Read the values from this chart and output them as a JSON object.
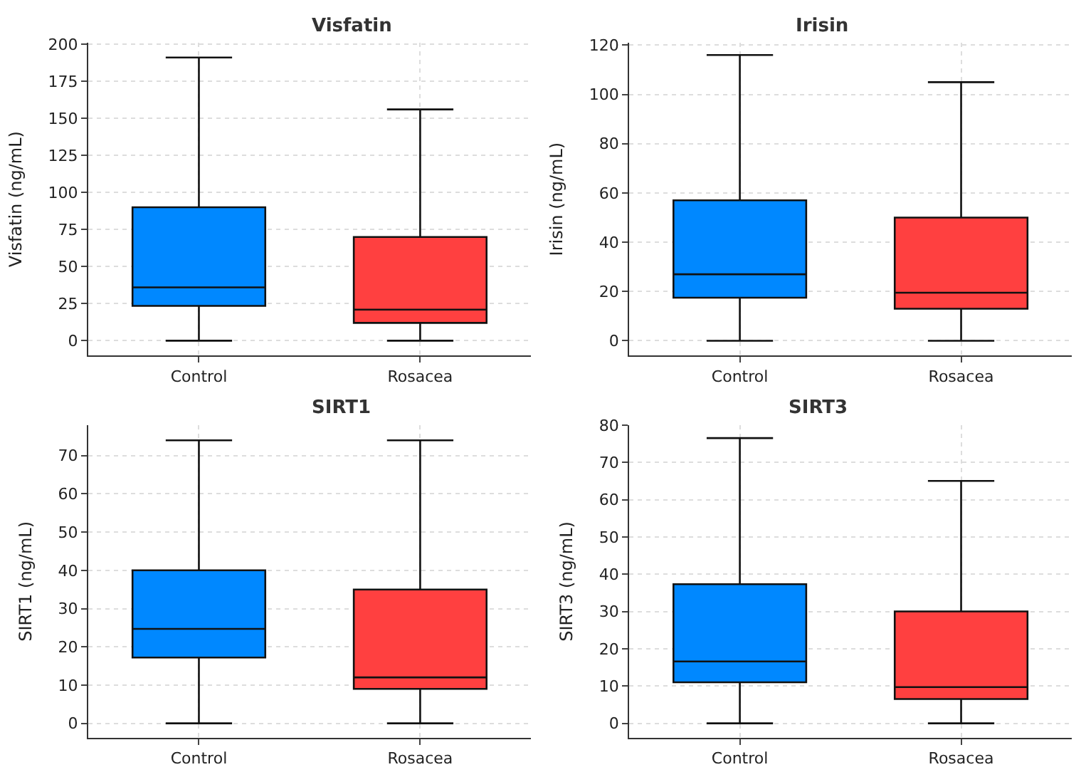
{
  "chart_data": [
    {
      "type": "box",
      "title": "Visfatin",
      "ylabel": "Visfatin (ng/mL)",
      "categories": [
        "Control",
        "Rosacea"
      ],
      "colors": [
        "#0088ff",
        "#ff4040"
      ],
      "boxes": [
        {
          "low": 0,
          "q1": 23.5,
          "median": 36,
          "q3": 90,
          "high": 191
        },
        {
          "low": 0,
          "q1": 12,
          "median": 21,
          "q3": 70,
          "high": 156
        }
      ],
      "ylim": [
        -10,
        201
      ],
      "yticks": [
        0,
        25,
        50,
        75,
        100,
        125,
        150,
        175,
        200
      ],
      "grid": true
    },
    {
      "type": "box",
      "title": "Irisin",
      "ylabel": "Irisin (ng/mL)",
      "categories": [
        "Control",
        "Rosacea"
      ],
      "colors": [
        "#0088ff",
        "#ff4040"
      ],
      "boxes": [
        {
          "low": 0,
          "q1": 17.5,
          "median": 27,
          "q3": 57,
          "high": 116
        },
        {
          "low": 0,
          "q1": 13,
          "median": 19.5,
          "q3": 50,
          "high": 105
        }
      ],
      "ylim": [
        -6,
        121
      ],
      "yticks": [
        0,
        20,
        40,
        60,
        80,
        100,
        120
      ],
      "grid": true
    },
    {
      "type": "box",
      "title": "SIRT1",
      "ylabel": "SIRT1 (ng/mL)",
      "categories": [
        "Control",
        "Rosacea"
      ],
      "colors": [
        "#0088ff",
        "#ff4040"
      ],
      "boxes": [
        {
          "low": 0,
          "q1": 17.2,
          "median": 24.7,
          "q3": 40,
          "high": 74
        },
        {
          "low": 0,
          "q1": 9,
          "median": 12,
          "q3": 35,
          "high": 74
        }
      ],
      "ylim": [
        -3.8,
        78
      ],
      "yticks": [
        0,
        10,
        20,
        30,
        40,
        50,
        60,
        70
      ],
      "grid": true
    },
    {
      "type": "box",
      "title": "SIRT3",
      "ylabel": "SIRT3 (ng/mL)",
      "categories": [
        "Control",
        "Rosacea"
      ],
      "colors": [
        "#0088ff",
        "#ff4040"
      ],
      "boxes": [
        {
          "low": 0,
          "q1": 11,
          "median": 16.6,
          "q3": 37.3,
          "high": 76.5
        },
        {
          "low": 0,
          "q1": 6.5,
          "median": 9.7,
          "q3": 30,
          "high": 65
        }
      ],
      "ylim": [
        -3.9,
        80
      ],
      "yticks": [
        0,
        10,
        20,
        30,
        40,
        50,
        60,
        70,
        80
      ],
      "grid": true
    }
  ]
}
